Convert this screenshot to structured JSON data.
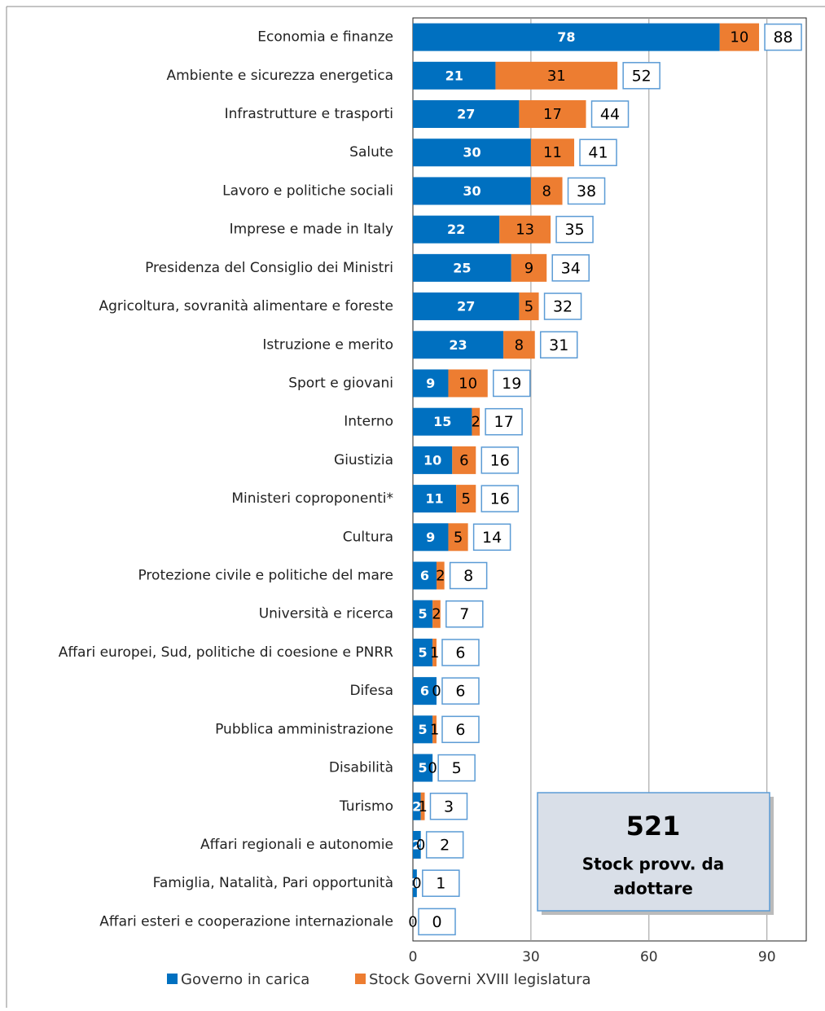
{
  "chart_data": {
    "type": "stacked_barh",
    "categories": [
      "Economia e finanze",
      "Ambiente e sicurezza energetica",
      "Infrastrutture e trasporti",
      "Salute",
      "Lavoro e politiche sociali",
      "Imprese e made in Italy",
      "Presidenza del Consiglio dei Ministri",
      "Agricoltura, sovranità alimentare e foreste",
      "Istruzione e merito",
      "Sport e giovani",
      "Interno",
      "Giustizia",
      "Ministeri coproponenti*",
      "Cultura",
      "Protezione civile e politiche del mare",
      "Università e ricerca",
      "Affari europei, Sud, politiche di coesione e PNRR",
      "Difesa",
      "Pubblica amministrazione",
      "Disabilità",
      "Turismo",
      "Affari regionali e autonomie",
      "Famiglia, Natalità, Pari opportunità",
      "Affari esteri e cooperazione internazionale"
    ],
    "series": [
      {
        "name": "Governo in carica",
        "color": "#0070c0",
        "values": [
          78,
          21,
          27,
          30,
          30,
          22,
          25,
          27,
          23,
          9,
          15,
          10,
          11,
          9,
          6,
          5,
          5,
          6,
          5,
          5,
          2,
          2,
          1,
          0
        ]
      },
      {
        "name": "Stock Governi XVIII legislatura",
        "color": "#ed7d31",
        "values": [
          10,
          31,
          17,
          11,
          8,
          13,
          9,
          5,
          8,
          10,
          2,
          6,
          5,
          5,
          2,
          2,
          1,
          0,
          1,
          0,
          1,
          0,
          0,
          0
        ]
      }
    ],
    "totals": [
      88,
      52,
      44,
      41,
      38,
      35,
      34,
      32,
      31,
      19,
      17,
      16,
      16,
      14,
      8,
      7,
      6,
      6,
      6,
      5,
      3,
      2,
      1,
      0
    ],
    "xlim": [
      0,
      100
    ],
    "xticks": [
      0,
      30,
      60,
      90
    ],
    "grid": true,
    "annotation_value": 521,
    "annotation_lines": [
      "Stock provv. da",
      "adottare"
    ]
  }
}
